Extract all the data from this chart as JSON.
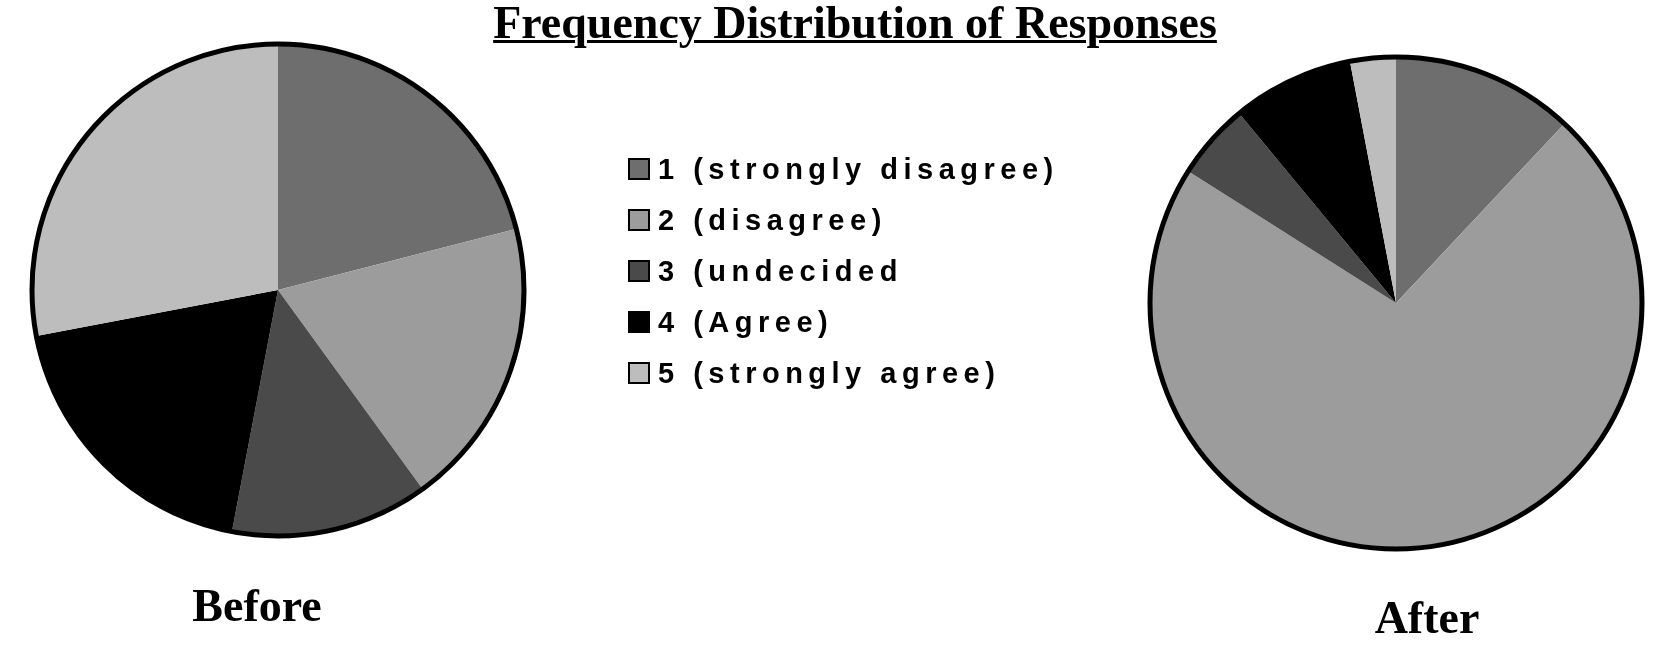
{
  "chart_data": {
    "type": "pie",
    "title": "Frequency Distribution of Responses",
    "categories": [
      "1 (strongly disagree)",
      "2 (disagree)",
      "3 (undecided",
      "4 (Agree)",
      "5 (strongly agree)"
    ],
    "colors": [
      "#6e6e6e",
      "#9c9c9c",
      "#4a4a4a",
      "#000000",
      "#bdbdbd"
    ],
    "legend": "top",
    "series": [
      {
        "name": "Before",
        "values": [
          21,
          19,
          13,
          19,
          28
        ]
      },
      {
        "name": "After",
        "values": [
          12,
          72,
          5,
          8,
          3
        ]
      }
    ]
  }
}
